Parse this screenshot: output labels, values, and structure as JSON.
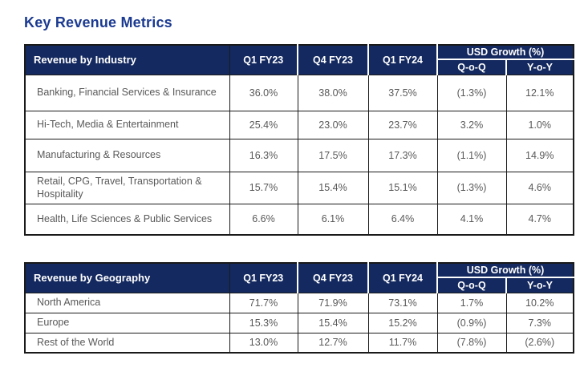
{
  "title": "Key Revenue Metrics",
  "colors": {
    "header_bg": "#14295f",
    "title_text": "#1b3a91",
    "body_text": "#595959",
    "grid_border": "#1a1a1a"
  },
  "columns": {
    "periods": [
      "Q1 FY23",
      "Q4 FY23",
      "Q1 FY24"
    ],
    "growth_group": "USD Growth (%)",
    "growth_sub": [
      "Q-o-Q",
      "Y-o-Y"
    ]
  },
  "industry_table": {
    "label_header": "Revenue by Industry",
    "rows": [
      {
        "label": "Banking, Financial Services & Insurance",
        "values": [
          "36.0%",
          "38.0%",
          "37.5%",
          "(1.3%)",
          "12.1%"
        ]
      },
      {
        "label": "Hi-Tech, Media & Entertainment",
        "values": [
          "25.4%",
          "23.0%",
          "23.7%",
          "3.2%",
          "1.0%"
        ]
      },
      {
        "label": "Manufacturing & Resources",
        "values": [
          "16.3%",
          "17.5%",
          "17.3%",
          "(1.1%)",
          "14.9%"
        ]
      },
      {
        "label": "Retail, CPG, Travel, Transportation & Hospitality",
        "values": [
          "15.7%",
          "15.4%",
          "15.1%",
          "(1.3%)",
          "4.6%"
        ]
      },
      {
        "label": "Health, Life Sciences & Public Services",
        "values": [
          "6.6%",
          "6.1%",
          "6.4%",
          "4.1%",
          "4.7%"
        ]
      }
    ]
  },
  "geography_table": {
    "label_header": "Revenue by Geography",
    "rows": [
      {
        "label": "North America",
        "values": [
          "71.7%",
          "71.9%",
          "73.1%",
          "1.7%",
          "10.2%"
        ]
      },
      {
        "label": "Europe",
        "values": [
          "15.3%",
          "15.4%",
          "15.2%",
          "(0.9%)",
          "7.3%"
        ]
      },
      {
        "label": "Rest of the World",
        "values": [
          "13.0%",
          "12.7%",
          "11.7%",
          "(7.8%)",
          "(2.6%)"
        ]
      }
    ]
  }
}
